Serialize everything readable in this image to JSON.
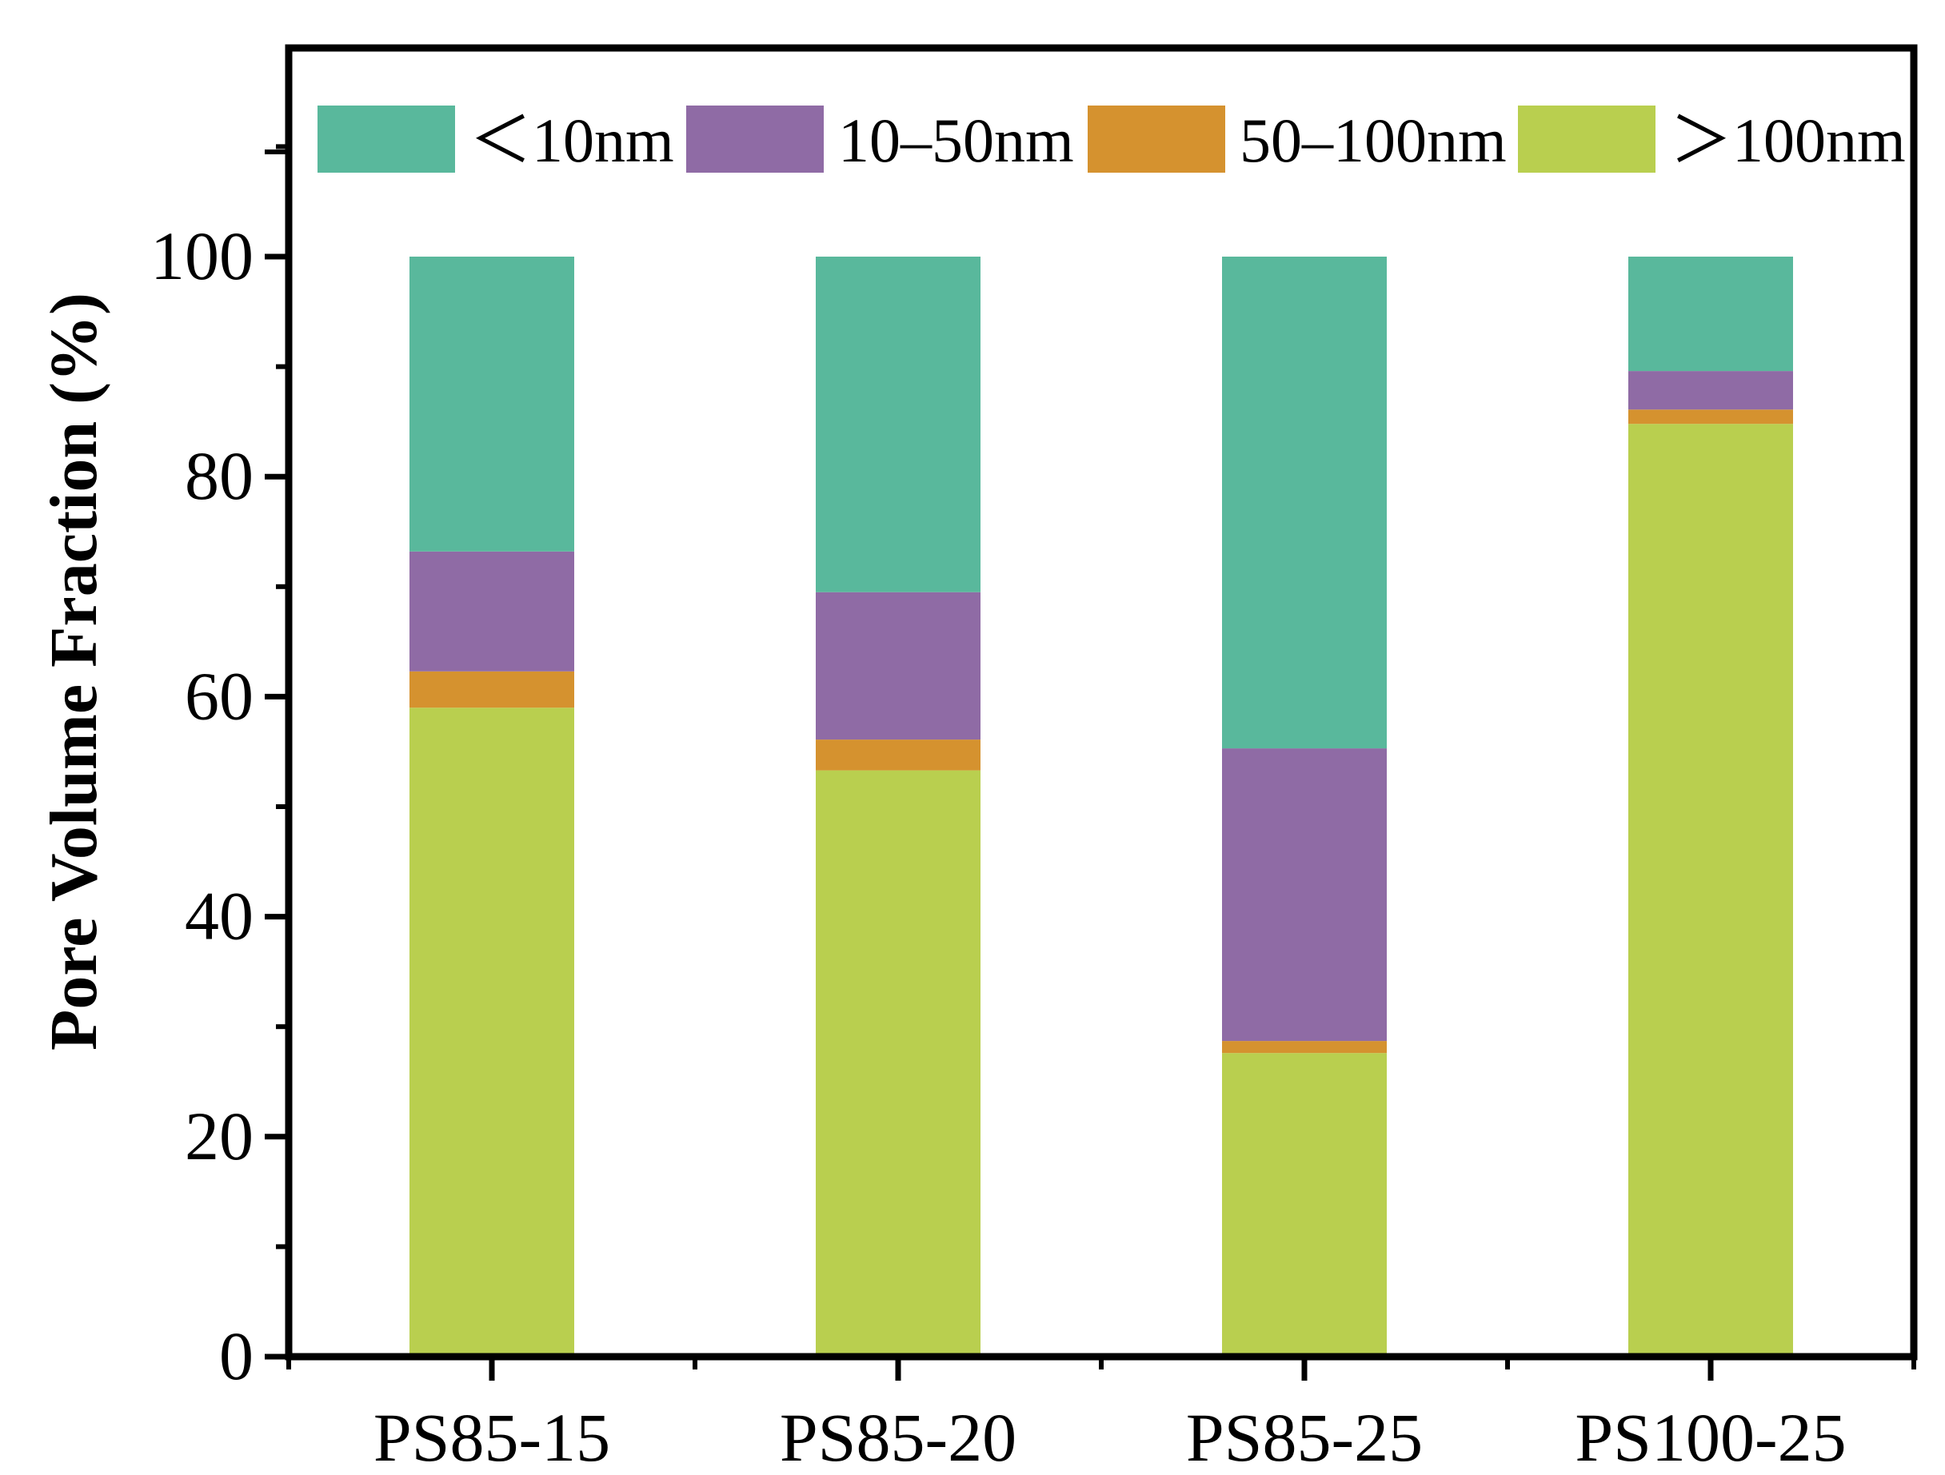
{
  "chart_data": {
    "type": "bar",
    "stacked": true,
    "title": "",
    "xlabel": "",
    "ylabel": "Pore Volume Fraction (%)",
    "ylim": [
      0,
      120
    ],
    "yticks": [
      "0",
      "20",
      "40",
      "60",
      "80",
      "100"
    ],
    "grid": false,
    "legend_position": "top",
    "categories": [
      "PS85-15",
      "PS85-20",
      "PS85-25",
      "PS100-25"
    ],
    "series": [
      {
        "name": ">100nm",
        "label": "＞100nm",
        "color": "#b9cf4f",
        "values": [
          59.0,
          53.3,
          27.6,
          84.8
        ]
      },
      {
        "name": "50-100nm",
        "label": "50–100nm",
        "color": "#d5922f",
        "values": [
          3.3,
          2.8,
          1.1,
          1.3
        ]
      },
      {
        "name": "10-50nm",
        "label": "10–50nm",
        "color": "#8f6ba5",
        "values": [
          10.9,
          13.4,
          26.6,
          3.5
        ]
      },
      {
        "name": "<10nm",
        "label": "＜10nm",
        "color": "#59b89c",
        "values": [
          26.8,
          30.5,
          44.7,
          10.4
        ]
      }
    ],
    "legend_order": [
      "<10nm",
      "10-50nm",
      "50-100nm",
      ">100nm"
    ]
  }
}
